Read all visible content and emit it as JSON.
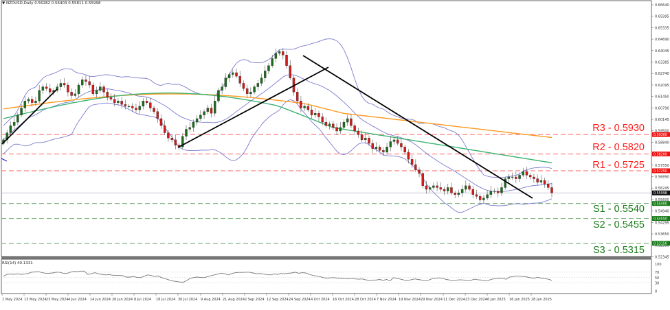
{
  "header": {
    "symbol": "NZDUSD,Daily",
    "ohlc": "0.56282 0.56403 0.55811 0.55998",
    "text": "NZDUSD,Daily  0.56282 0.56403 0.55811 0.55998"
  },
  "rsi_header": "RSI(14) 40.1331",
  "levels": {
    "R3": {
      "label": "R3 - 0.5930",
      "value": 0.593,
      "color": "#ff0000"
    },
    "R2": {
      "label": "R2 - 0.5820",
      "value": 0.582,
      "color": "#ff0000"
    },
    "R1": {
      "label": "R1 - 0.5725",
      "value": 0.5725,
      "color": "#ff0000"
    },
    "S1": {
      "label": "S1 - 0.5540",
      "value": 0.554,
      "color": "#008000"
    },
    "S2": {
      "label": "S2 - 0.5455",
      "value": 0.5455,
      "color": "#008000"
    },
    "S3": {
      "label": "S3 - 0.5315",
      "value": 0.5315,
      "color": "#008000"
    }
  },
  "chart_data": {
    "type": "candlestick",
    "title": "NZDUSD,Daily",
    "price_axis_ticks": [
      "0.66640",
      "0.65995",
      "0.65335",
      "0.64690",
      "0.64045",
      "0.63385",
      "0.62740",
      "0.62095",
      "0.61450",
      "0.60790",
      "0.60145",
      "0.59500",
      "0.58840",
      "0.58195",
      "0.57550",
      "0.56890",
      "0.56245",
      "0.55600",
      "0.54940",
      "0.54295",
      "0.53650",
      "0.52990",
      "0.52345"
    ],
    "price_axis_tags": [
      {
        "text": "0.59300",
        "color": "#ff0000"
      },
      {
        "text": "0.58200",
        "color": "#ff0000"
      },
      {
        "text": "0.57250",
        "color": "#ff0000"
      },
      {
        "text": "0.55998",
        "color": "#000000"
      },
      {
        "text": "0.55400",
        "color": "#008000"
      },
      {
        "text": "0.54550",
        "color": "#008000"
      },
      {
        "text": "0.53150",
        "color": "#008000"
      }
    ],
    "x_tick_labels": [
      "1 May 2024",
      "13 May 2024",
      "23 May 2024",
      "4 Jun 2024",
      "14 Jun 2024",
      "26 Jun 2024",
      "8 Jul 2024",
      "18 Jul 2024",
      "30 Jul 2024",
      "9 Aug 2024",
      "21 Aug 2024",
      "2 Sep 2024",
      "12 Sep 2024",
      "24 Sep 2024",
      "4 Oct 2024",
      "16 Oct 2024",
      "28 Oct 2024",
      "7 Nov 2024",
      "19 Nov 2024",
      "29 Nov 2024",
      "11 Dec 2024",
      "23 Dec 2024",
      "6 Jan 2025",
      "16 Jan 2025",
      "28 Jan 2025"
    ],
    "last_close": 0.55998,
    "ohlc_last": {
      "open": 0.56282,
      "high": 0.56403,
      "low": 0.55811,
      "close": 0.55998
    },
    "approx_closes": [
      0.59,
      0.594,
      0.598,
      0.6,
      0.604,
      0.608,
      0.612,
      0.613,
      0.611,
      0.612,
      0.618,
      0.62,
      0.619,
      0.617,
      0.618,
      0.62,
      0.622,
      0.621,
      0.617,
      0.615,
      0.616,
      0.621,
      0.624,
      0.623,
      0.621,
      0.616,
      0.618,
      0.62,
      0.617,
      0.614,
      0.613,
      0.611,
      0.612,
      0.61,
      0.609,
      0.609,
      0.608,
      0.607,
      0.609,
      0.612,
      0.611,
      0.608,
      0.606,
      0.602,
      0.598,
      0.594,
      0.591,
      0.59,
      0.587,
      0.586,
      0.592,
      0.596,
      0.597,
      0.6,
      0.602,
      0.604,
      0.606,
      0.608,
      0.605,
      0.612,
      0.618,
      0.62,
      0.625,
      0.627,
      0.628,
      0.626,
      0.622,
      0.619,
      0.616,
      0.617,
      0.62,
      0.622,
      0.625,
      0.629,
      0.632,
      0.636,
      0.639,
      0.64,
      0.638,
      0.632,
      0.625,
      0.617,
      0.612,
      0.608,
      0.609,
      0.607,
      0.604,
      0.605,
      0.603,
      0.6,
      0.598,
      0.599,
      0.597,
      0.595,
      0.597,
      0.6,
      0.602,
      0.598,
      0.595,
      0.593,
      0.59,
      0.591,
      0.588,
      0.585,
      0.586,
      0.584,
      0.583,
      0.586,
      0.589,
      0.59,
      0.588,
      0.586,
      0.583,
      0.579,
      0.576,
      0.573,
      0.571,
      0.564,
      0.562,
      0.563,
      0.564,
      0.563,
      0.562,
      0.561,
      0.563,
      0.56,
      0.559,
      0.56,
      0.562,
      0.564,
      0.562,
      0.559,
      0.558,
      0.556,
      0.557,
      0.559,
      0.561,
      0.561,
      0.56,
      0.563,
      0.568,
      0.569,
      0.569,
      0.568,
      0.57,
      0.572,
      0.57,
      0.569,
      0.568,
      0.566,
      0.567,
      0.565,
      0.563,
      0.56
    ],
    "overlays": [
      {
        "name": "Bollinger Bands (upper/middle/lower)",
        "color": "#6666cc"
      },
      {
        "name": "MA 100",
        "color": "#3cb371"
      },
      {
        "name": "MA 200",
        "color": "#ff9900"
      },
      {
        "name": "Trendline up (May)",
        "color": "#000000"
      },
      {
        "name": "Trendline up (Aug-Sep)",
        "color": "#000000"
      },
      {
        "name": "Trendline down (Sep-Jan)",
        "color": "#000000"
      }
    ],
    "rsi": {
      "label": "RSI(14)",
      "last": 40.1331,
      "ylim": [
        0,
        100
      ],
      "ticks": [
        "100",
        "70",
        "50",
        "30",
        "0"
      ],
      "values": [
        55,
        62,
        63,
        62,
        64,
        62,
        63,
        65,
        70,
        71,
        72,
        68,
        66,
        66,
        67,
        70,
        70,
        66,
        65,
        70,
        73,
        72,
        74,
        74,
        62,
        64,
        68,
        64,
        62,
        60,
        61,
        59,
        58,
        58,
        57,
        52,
        52,
        54,
        51,
        50,
        55,
        60,
        58,
        54,
        56,
        50,
        46,
        42,
        38,
        36,
        34,
        33,
        38,
        46,
        50,
        52,
        51,
        50,
        53,
        57,
        60,
        63,
        66,
        64,
        60,
        65,
        68,
        69,
        69,
        70,
        70,
        67,
        64,
        65,
        63,
        61,
        60,
        63,
        62,
        65,
        64,
        66,
        67,
        70,
        66,
        68,
        67,
        62,
        58,
        56,
        54,
        50,
        48,
        49,
        50,
        48,
        48,
        46,
        45,
        47,
        45,
        44,
        45,
        42,
        40,
        41,
        41,
        43,
        40,
        43,
        38,
        50,
        47,
        44,
        41,
        40,
        42,
        45,
        43,
        41,
        40,
        41,
        46,
        47,
        49,
        47,
        43,
        41,
        40,
        41,
        42,
        41,
        40,
        40,
        44,
        42,
        41,
        39,
        40,
        44,
        46,
        48,
        47,
        44,
        52,
        54,
        56,
        55,
        54,
        52,
        49,
        48,
        51,
        48,
        46,
        44,
        40
      ]
    }
  }
}
